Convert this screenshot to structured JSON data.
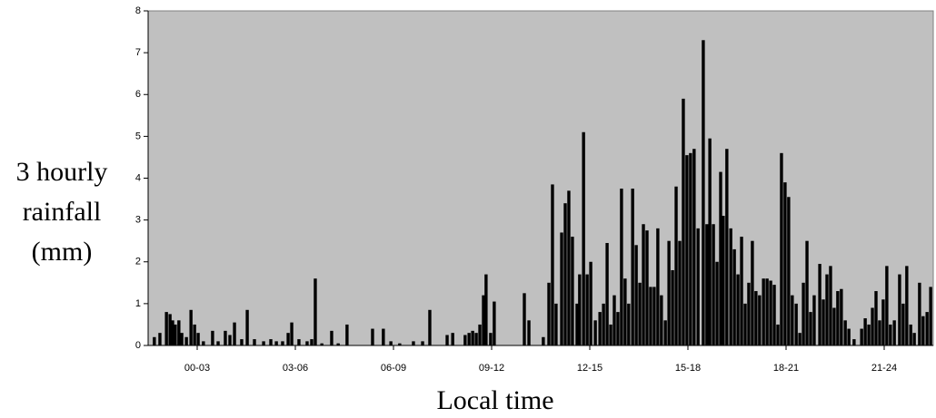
{
  "chart_data": {
    "type": "bar",
    "ylabel": [
      "3 hourly",
      "rainfall",
      "(mm)"
    ],
    "xlabel": "Local time",
    "color": "#000000",
    "background": "#c0c0c0",
    "xlim": [
      0,
      24
    ],
    "xticks": [
      {
        "value": 1.5,
        "label": "00-03"
      },
      {
        "value": 4.5,
        "label": "03-06"
      },
      {
        "value": 7.5,
        "label": "06-09"
      },
      {
        "value": 10.5,
        "label": "09-12"
      },
      {
        "value": 13.5,
        "label": "12-15"
      },
      {
        "value": 16.5,
        "label": "15-18"
      },
      {
        "value": 19.5,
        "label": "18-21"
      },
      {
        "value": 22.5,
        "label": "21-24"
      }
    ],
    "ylim": [
      0,
      8
    ],
    "yticks": [
      0,
      1,
      2,
      3,
      4,
      5,
      6,
      7,
      8
    ],
    "x": [
      0.19,
      0.36,
      0.56,
      0.67,
      0.75,
      0.83,
      0.94,
      1.03,
      1.17,
      1.31,
      1.42,
      1.53,
      1.69,
      1.97,
      2.14,
      2.36,
      2.5,
      2.64,
      2.86,
      3.03,
      3.25,
      3.53,
      3.75,
      3.92,
      4.11,
      4.28,
      4.39,
      4.61,
      4.86,
      5.0,
      5.11,
      5.31,
      5.61,
      5.81,
      6.08,
      6.86,
      7.19,
      7.42,
      7.69,
      8.11,
      8.39,
      8.61,
      9.14,
      9.31,
      9.69,
      9.81,
      9.92,
      10.03,
      10.14,
      10.25,
      10.33,
      10.47,
      10.58,
      11.5,
      11.64,
      12.08,
      12.25,
      12.36,
      12.47,
      12.64,
      12.75,
      12.86,
      12.97,
      13.11,
      13.19,
      13.31,
      13.42,
      13.53,
      13.67,
      13.81,
      13.92,
      14.03,
      14.14,
      14.25,
      14.36,
      14.47,
      14.58,
      14.69,
      14.81,
      14.92,
      15.03,
      15.14,
      15.25,
      15.36,
      15.47,
      15.58,
      15.69,
      15.81,
      15.92,
      16.03,
      16.14,
      16.25,
      16.36,
      16.47,
      16.58,
      16.69,
      16.81,
      16.97,
      17.08,
      17.17,
      17.28,
      17.39,
      17.5,
      17.58,
      17.69,
      17.81,
      17.92,
      18.03,
      18.14,
      18.25,
      18.36,
      18.47,
      18.58,
      18.69,
      18.81,
      18.92,
      19.03,
      19.14,
      19.25,
      19.36,
      19.47,
      19.58,
      19.69,
      19.81,
      19.92,
      20.03,
      20.14,
      20.25,
      20.36,
      20.53,
      20.64,
      20.75,
      20.86,
      20.97,
      21.08,
      21.19,
      21.31,
      21.42,
      21.58,
      21.81,
      21.92,
      22.03,
      22.14,
      22.25,
      22.36,
      22.47,
      22.58,
      22.69,
      22.81,
      22.97,
      23.08,
      23.19,
      23.31,
      23.42,
      23.58,
      23.69,
      23.81,
      23.92
    ],
    "values": [
      0.2,
      0.3,
      0.8,
      0.75,
      0.6,
      0.5,
      0.6,
      0.3,
      0.2,
      0.85,
      0.5,
      0.3,
      0.1,
      0.35,
      0.1,
      0.35,
      0.25,
      0.55,
      0.15,
      0.85,
      0.15,
      0.1,
      0.15,
      0.1,
      0.1,
      0.3,
      0.55,
      0.15,
      0.1,
      0.15,
      1.6,
      0.05,
      0.35,
      0.05,
      0.5,
      0.4,
      0.4,
      0.1,
      0.05,
      0.1,
      0.1,
      0.85,
      0.25,
      0.3,
      0.25,
      0.3,
      0.35,
      0.3,
      0.5,
      1.2,
      1.7,
      0.3,
      1.05,
      1.25,
      0.6,
      0.2,
      1.5,
      3.85,
      1.0,
      2.7,
      3.4,
      3.7,
      2.6,
      1.0,
      1.7,
      5.1,
      1.7,
      2.0,
      0.6,
      0.8,
      1.0,
      2.45,
      0.5,
      1.2,
      0.8,
      3.75,
      1.6,
      1.0,
      3.75,
      2.4,
      1.5,
      2.9,
      2.75,
      1.4,
      1.4,
      2.8,
      1.2,
      0.6,
      2.5,
      1.8,
      3.8,
      2.5,
      5.9,
      4.55,
      4.6,
      4.7,
      2.8,
      7.3,
      2.9,
      4.95,
      2.9,
      2.0,
      4.15,
      3.1,
      4.7,
      2.8,
      2.3,
      1.7,
      2.6,
      1.0,
      1.5,
      2.5,
      1.3,
      1.2,
      1.6,
      1.6,
      1.55,
      1.45,
      0.5,
      4.6,
      3.9,
      3.55,
      1.2,
      1.0,
      0.3,
      1.5,
      2.5,
      0.8,
      1.2,
      1.95,
      1.1,
      1.7,
      1.9,
      0.9,
      1.3,
      1.35,
      0.6,
      0.4,
      0.15,
      0.4,
      0.65,
      0.5,
      0.9,
      1.3,
      0.6,
      1.1,
      1.9,
      0.5,
      0.6,
      1.7,
      1.0,
      1.9,
      0.5,
      0.3,
      1.5,
      0.7,
      0.8,
      1.4
    ]
  }
}
